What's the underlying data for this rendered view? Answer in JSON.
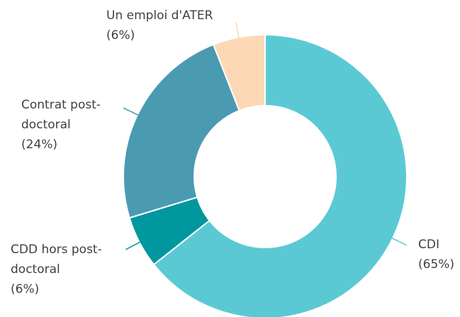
{
  "chart_data": {
    "type": "donut",
    "categories": [
      "CDI",
      "CDD hors post-doctoral",
      "Contrat post-doctoral",
      "Un emploi d'ATER"
    ],
    "values": [
      65,
      6,
      24,
      6
    ],
    "value_labels": [
      "(65%)",
      "(6%)",
      "(24%)",
      "(6%)"
    ],
    "colors": [
      "#5bc9d4",
      "#00979f",
      "#4a9ab1",
      "#fdd8b5"
    ]
  }
}
